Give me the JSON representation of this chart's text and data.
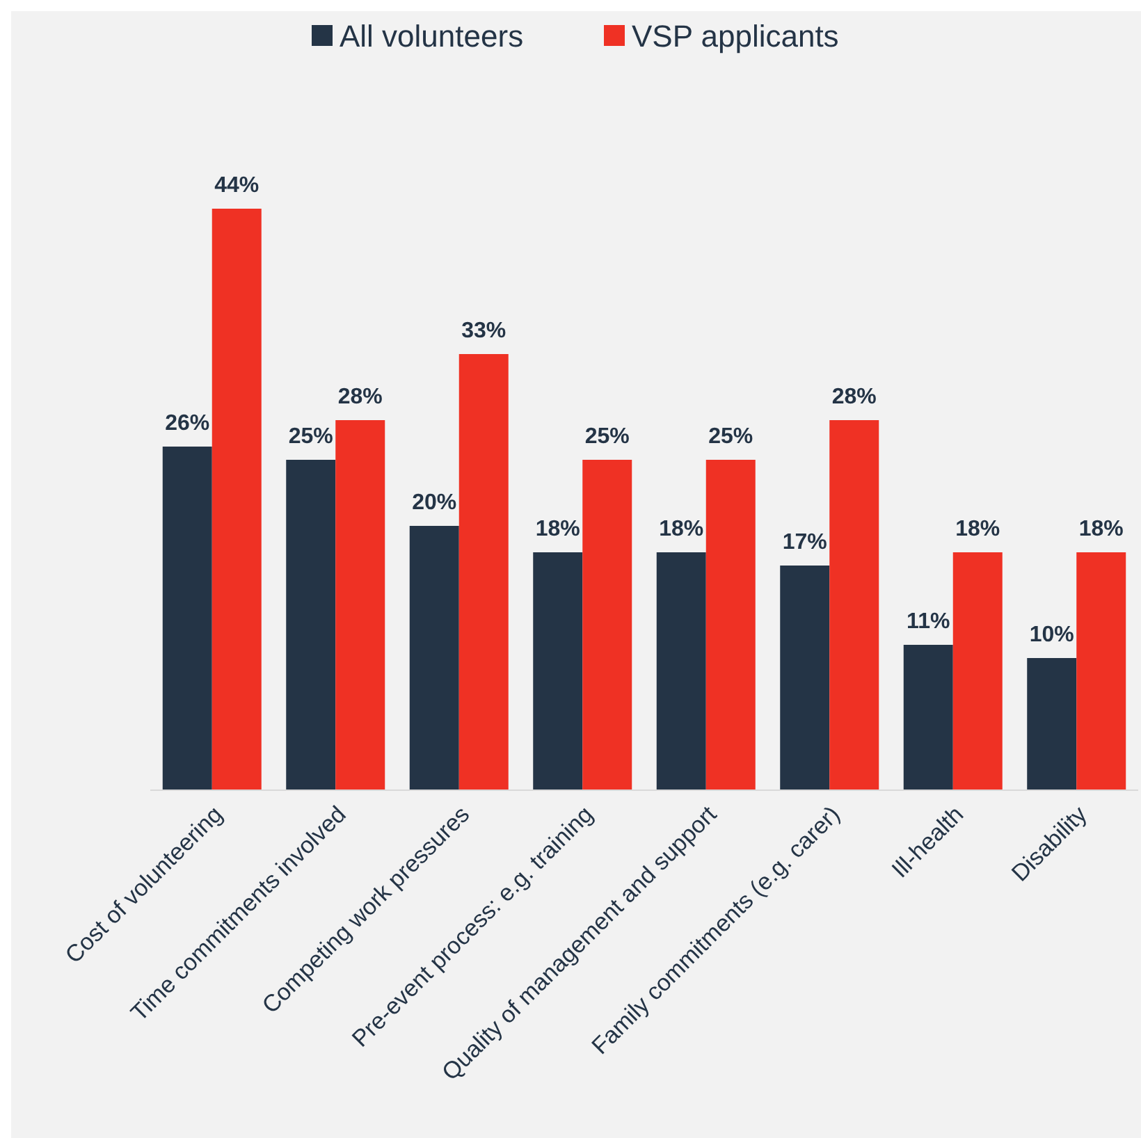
{
  "chart_data": {
    "type": "bar",
    "categories": [
      "Cost of volunteering",
      "Time commitments involved",
      "Competing work pressures",
      "Pre-event process: e.g. training",
      "Quality of management and support",
      "Family commitments (e.g. carer)",
      "Ill-health",
      "Disability"
    ],
    "series": [
      {
        "name": "All volunteers",
        "color": "#243446",
        "values": [
          26,
          25,
          20,
          18,
          18,
          17,
          11,
          10
        ],
        "value_labels": [
          "26%",
          "25%",
          "20%",
          "18%",
          "18%",
          "17%",
          "11%",
          "10%"
        ]
      },
      {
        "name": "VSP applicants",
        "color": "#ef3124",
        "values": [
          44,
          28,
          33,
          25,
          25,
          28,
          18,
          18
        ],
        "value_labels": [
          "44%",
          "28%",
          "33%",
          "25%",
          "25%",
          "28%",
          "18%",
          "18%"
        ]
      }
    ],
    "legend": "top"
  }
}
